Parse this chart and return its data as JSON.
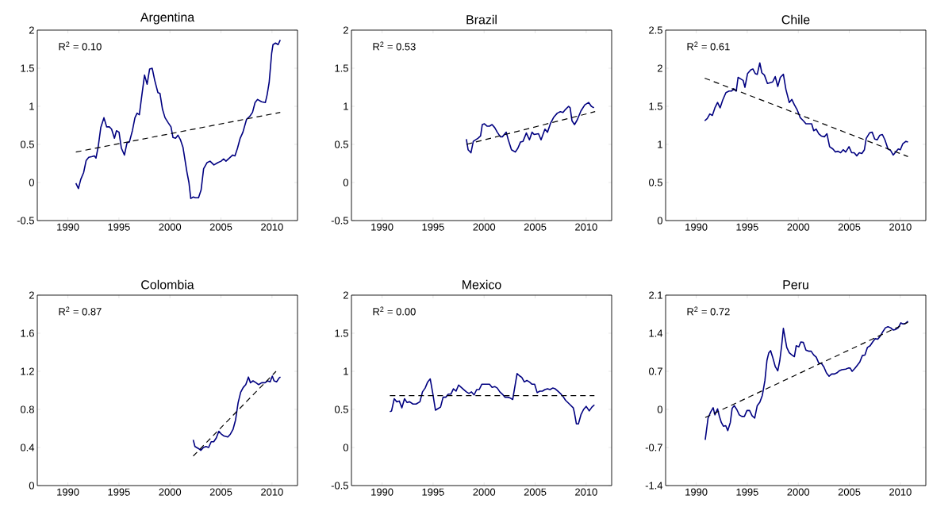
{
  "chart_data": [
    {
      "type": "line",
      "title": "Argentina",
      "annotations": [
        "R$^{2}$ = 0.10"
      ],
      "xlim": [
        1987,
        2012.5
      ],
      "ylim": [
        -0.5,
        2
      ],
      "xticks": [
        1990,
        1995,
        2000,
        2005,
        2010
      ],
      "yticks": [
        -0.5,
        0,
        0.5,
        1,
        1.5,
        2
      ],
      "series": [
        {
          "color": "#000080",
          "line_style": "solid",
          "x": [
            1990.78,
            1991.03,
            1991.26,
            1991.54,
            1991.79,
            1992.04,
            1992.39,
            1992.59,
            1992.75,
            1992.97,
            1993.22,
            1993.53,
            1993.8,
            1994.06,
            1994.28,
            1994.56,
            1994.76,
            1995.01,
            1995.24,
            1995.54,
            1995.79,
            1996.02,
            1996.32,
            1996.57,
            1996.78,
            1997.0,
            1997.25,
            1997.51,
            1997.76,
            1998.01,
            1998.26,
            1998.51,
            1998.82,
            1999.02,
            1999.27,
            1999.52,
            1999.85,
            2000.1,
            2000.3,
            2000.55,
            2000.78,
            2001.03,
            2001.28,
            2001.66,
            2001.86,
            2002.04,
            2002.29,
            2002.49,
            2002.8,
            2003.05,
            2003.3,
            2003.63,
            2003.93,
            2004.31,
            2004.69,
            2005.01,
            2005.26,
            2005.49,
            2005.82,
            2006.15,
            2006.37,
            2006.62,
            2006.88,
            2007.15,
            2007.51,
            2007.83,
            2008.09,
            2008.34,
            2008.59,
            2008.97,
            2009.35,
            2009.52,
            2009.72,
            2009.97,
            2010.1,
            2010.35,
            2010.6,
            2010.81
          ],
          "values": [
            -0.01,
            -0.08,
            0.04,
            0.13,
            0.29,
            0.33,
            0.34,
            0.35,
            0.32,
            0.47,
            0.72,
            0.85,
            0.73,
            0.73,
            0.7,
            0.58,
            0.68,
            0.66,
            0.45,
            0.36,
            0.52,
            0.53,
            0.68,
            0.85,
            0.91,
            0.89,
            1.15,
            1.41,
            1.29,
            1.49,
            1.5,
            1.34,
            1.18,
            1.17,
            0.96,
            0.85,
            0.78,
            0.73,
            0.59,
            0.58,
            0.62,
            0.56,
            0.46,
            0.14,
            0.0,
            -0.21,
            -0.19,
            -0.2,
            -0.2,
            -0.1,
            0.18,
            0.26,
            0.28,
            0.23,
            0.26,
            0.28,
            0.31,
            0.28,
            0.32,
            0.36,
            0.35,
            0.45,
            0.58,
            0.66,
            0.83,
            0.87,
            0.92,
            1.05,
            1.09,
            1.06,
            1.05,
            1.15,
            1.31,
            1.7,
            1.81,
            1.83,
            1.81,
            1.87
          ]
        },
        {
          "type": "line",
          "color": "#000000",
          "line_style": "dashed",
          "x": [
            1990.78,
            2010.81
          ],
          "values": [
            0.4,
            0.92
          ]
        }
      ]
    },
    {
      "type": "line",
      "title": "Brazil",
      "annotations": [
        "R$^{2}$ = 0.53"
      ],
      "xlim": [
        1987,
        2012.5
      ],
      "ylim": [
        -0.5,
        2
      ],
      "xticks": [
        1990,
        1995,
        2000,
        2005,
        2010
      ],
      "yticks": [
        -0.5,
        0,
        0.5,
        1,
        1.5,
        2
      ],
      "series": [
        {
          "color": "#000080",
          "line_style": "solid",
          "x": [
            1998.26,
            1998.43,
            1998.71,
            1998.94,
            1999.39,
            1999.65,
            1999.82,
            2000.03,
            2000.28,
            2000.53,
            2000.78,
            2001.04,
            2001.29,
            2001.59,
            2001.79,
            2002.17,
            2002.37,
            2002.68,
            2003.06,
            2003.31,
            2003.56,
            2003.81,
            2004.14,
            2004.44,
            2004.7,
            2004.9,
            2005.33,
            2005.58,
            2005.96,
            2006.21,
            2006.52,
            2006.84,
            2007.17,
            2007.47,
            2007.73,
            2007.98,
            2008.28,
            2008.43,
            2008.61,
            2008.86,
            2009.12,
            2009.49,
            2009.87,
            2010.25,
            2010.51,
            2010.76
          ],
          "values": [
            0.57,
            0.43,
            0.39,
            0.54,
            0.58,
            0.61,
            0.76,
            0.77,
            0.74,
            0.74,
            0.76,
            0.72,
            0.66,
            0.6,
            0.6,
            0.66,
            0.56,
            0.43,
            0.4,
            0.45,
            0.53,
            0.54,
            0.65,
            0.56,
            0.66,
            0.63,
            0.64,
            0.56,
            0.7,
            0.66,
            0.78,
            0.86,
            0.91,
            0.93,
            0.92,
            0.96,
            1.0,
            0.98,
            0.81,
            0.76,
            0.82,
            0.94,
            1.02,
            1.05,
            1.0,
            0.98
          ]
        },
        {
          "type": "line",
          "color": "#000000",
          "line_style": "dashed",
          "x": [
            1998.26,
            2010.88
          ],
          "values": [
            0.5,
            0.93
          ]
        }
      ]
    },
    {
      "type": "line",
      "title": "Chile",
      "annotations": [
        "R$^{2}$ = 0.61"
      ],
      "xlim": [
        1987,
        2012.5
      ],
      "ylim": [
        0,
        2.5
      ],
      "xticks": [
        1990,
        1995,
        2000,
        2005,
        2010
      ],
      "yticks": [
        0,
        0.5,
        1,
        1.5,
        2,
        2.5
      ],
      "series": [
        {
          "color": "#000080",
          "line_style": "solid",
          "x": [
            1990.83,
            1991.08,
            1991.33,
            1991.58,
            1991.83,
            1992.09,
            1992.34,
            1992.59,
            1992.91,
            1993.22,
            1993.47,
            1993.67,
            1993.92,
            1994.1,
            1994.35,
            1994.6,
            1994.77,
            1995.03,
            1995.35,
            1995.55,
            1995.78,
            1995.98,
            1996.23,
            1996.43,
            1996.68,
            1996.98,
            1997.24,
            1997.49,
            1997.74,
            1997.99,
            1998.24,
            1998.54,
            1998.79,
            1999.12,
            1999.37,
            1999.62,
            1999.87,
            2000.2,
            2000.5,
            2000.75,
            2001.08,
            2001.31,
            2001.51,
            2001.76,
            2002.01,
            2002.26,
            2002.56,
            2002.81,
            2003.07,
            2003.39,
            2003.64,
            2003.89,
            2004.15,
            2004.4,
            2004.65,
            2004.97,
            2005.23,
            2005.48,
            2005.73,
            2005.98,
            2006.23,
            2006.48,
            2006.66,
            2006.98,
            2007.24,
            2007.49,
            2007.74,
            2007.99,
            2008.24,
            2008.49,
            2008.79,
            2009.05,
            2009.3,
            2009.55,
            2009.8,
            2010.0,
            2010.25,
            2010.55,
            2010.75
          ],
          "values": [
            1.31,
            1.34,
            1.4,
            1.38,
            1.48,
            1.55,
            1.48,
            1.58,
            1.68,
            1.7,
            1.7,
            1.73,
            1.7,
            1.88,
            1.86,
            1.84,
            1.75,
            1.93,
            1.98,
            1.99,
            1.93,
            1.92,
            2.07,
            1.94,
            1.91,
            1.8,
            1.81,
            1.82,
            1.89,
            1.76,
            1.88,
            1.92,
            1.72,
            1.55,
            1.59,
            1.52,
            1.46,
            1.35,
            1.31,
            1.27,
            1.27,
            1.27,
            1.18,
            1.2,
            1.14,
            1.11,
            1.1,
            1.14,
            0.97,
            0.94,
            0.9,
            0.91,
            0.89,
            0.93,
            0.9,
            0.97,
            0.89,
            0.89,
            0.85,
            0.89,
            0.88,
            0.93,
            1.08,
            1.15,
            1.16,
            1.07,
            1.06,
            1.12,
            1.13,
            1.06,
            0.94,
            0.92,
            0.86,
            0.9,
            0.94,
            0.93,
            1.01,
            1.04,
            1.03
          ]
        },
        {
          "type": "line",
          "color": "#000000",
          "line_style": "dashed",
          "x": [
            1990.83,
            2010.75
          ],
          "values": [
            1.87,
            0.84
          ]
        }
      ]
    },
    {
      "type": "line",
      "title": "Colombia",
      "annotations": [
        "R$^{2}$ = 0.87"
      ],
      "xlim": [
        1987,
        2012.5
      ],
      "ylim": [
        0,
        2
      ],
      "xticks": [
        1990,
        1995,
        2000,
        2005,
        2010
      ],
      "yticks": [
        0,
        0.4,
        0.8,
        1.2,
        1.6,
        2
      ],
      "series": [
        {
          "color": "#000080",
          "line_style": "solid",
          "x": [
            2002.28,
            2002.45,
            2002.78,
            2003.03,
            2003.28,
            2003.53,
            2003.79,
            2004.04,
            2004.29,
            2004.54,
            2004.79,
            2005.04,
            2005.3,
            2005.67,
            2005.92,
            2006.18,
            2006.43,
            2006.68,
            2006.93,
            2007.18,
            2007.43,
            2007.69,
            2007.89,
            2008.14,
            2008.44,
            2008.69,
            2008.99,
            2009.32,
            2009.57,
            2009.82,
            2010.03,
            2010.2,
            2010.45,
            2010.7,
            2010.83
          ],
          "values": [
            0.48,
            0.41,
            0.39,
            0.37,
            0.4,
            0.41,
            0.4,
            0.46,
            0.46,
            0.5,
            0.57,
            0.54,
            0.52,
            0.51,
            0.54,
            0.59,
            0.69,
            0.87,
            0.98,
            1.03,
            1.06,
            1.14,
            1.08,
            1.1,
            1.08,
            1.06,
            1.08,
            1.08,
            1.1,
            1.09,
            1.15,
            1.1,
            1.09,
            1.13,
            1.14
          ]
        },
        {
          "type": "line",
          "color": "#000000",
          "line_style": "dashed",
          "x": [
            2002.28,
            2010.4
          ],
          "values": [
            0.31,
            1.2
          ]
        }
      ]
    },
    {
      "type": "line",
      "title": "Mexico",
      "annotations": [
        "R$^{2}$ = 0.00"
      ],
      "xlim": [
        1987,
        2012.5
      ],
      "ylim": [
        -0.5,
        2
      ],
      "xticks": [
        1990,
        1995,
        2000,
        2005,
        2010
      ],
      "yticks": [
        -0.5,
        0,
        0.5,
        1,
        1.5,
        2
      ],
      "series": [
        {
          "color": "#000080",
          "line_style": "solid",
          "x": [
            1990.76,
            1990.93,
            1991.19,
            1991.44,
            1991.69,
            1991.94,
            1992.2,
            1992.45,
            1992.7,
            1993.03,
            1993.33,
            1993.71,
            1993.96,
            1994.22,
            1994.47,
            1994.72,
            1994.97,
            1995.23,
            1995.48,
            1995.73,
            1995.98,
            1996.24,
            1996.49,
            1996.74,
            1996.99,
            1997.25,
            1997.5,
            1997.75,
            1998.01,
            1998.26,
            1998.51,
            1998.76,
            1999.02,
            1999.27,
            1999.52,
            1999.77,
            2000.03,
            2000.28,
            2000.53,
            2000.78,
            2001.04,
            2001.29,
            2001.54,
            2001.79,
            2002.05,
            2002.3,
            2002.55,
            2002.8,
            2003.23,
            2003.48,
            2003.69,
            2003.94,
            2004.19,
            2004.44,
            2004.7,
            2004.95,
            2005.2,
            2005.45,
            2005.71,
            2005.96,
            2006.21,
            2006.46,
            2006.72,
            2006.97,
            2007.22,
            2007.47,
            2007.73,
            2007.98,
            2008.36,
            2008.74,
            2008.86,
            2009.04,
            2009.24,
            2009.49,
            2009.75,
            2010.0,
            2010.3,
            2010.56,
            2010.81
          ],
          "values": [
            0.47,
            0.48,
            0.64,
            0.6,
            0.61,
            0.52,
            0.64,
            0.59,
            0.6,
            0.57,
            0.57,
            0.6,
            0.73,
            0.78,
            0.86,
            0.9,
            0.71,
            0.49,
            0.51,
            0.53,
            0.66,
            0.66,
            0.7,
            0.7,
            0.77,
            0.74,
            0.82,
            0.79,
            0.76,
            0.73,
            0.71,
            0.73,
            0.69,
            0.76,
            0.76,
            0.83,
            0.83,
            0.83,
            0.83,
            0.79,
            0.8,
            0.78,
            0.73,
            0.7,
            0.66,
            0.66,
            0.65,
            0.63,
            0.97,
            0.94,
            0.92,
            0.86,
            0.88,
            0.86,
            0.83,
            0.83,
            0.72,
            0.74,
            0.74,
            0.76,
            0.77,
            0.76,
            0.78,
            0.77,
            0.74,
            0.71,
            0.67,
            0.62,
            0.57,
            0.52,
            0.45,
            0.31,
            0.31,
            0.43,
            0.5,
            0.54,
            0.48,
            0.53,
            0.56
          ]
        },
        {
          "type": "line",
          "color": "#000000",
          "line_style": "dashed",
          "x": [
            1990.76,
            2010.81
          ],
          "values": [
            0.68,
            0.68
          ]
        }
      ]
    },
    {
      "type": "line",
      "title": "Peru",
      "annotations": [
        "R$^{2}$ = 0.72"
      ],
      "xlim": [
        1987,
        2012.5
      ],
      "ylim": [
        -1.4,
        2.1
      ],
      "xticks": [
        1990,
        1995,
        2000,
        2005,
        2010
      ],
      "yticks": [
        -1.4,
        -0.7,
        0,
        0.7,
        1.4,
        2.1
      ],
      "series": [
        {
          "color": "#000080",
          "line_style": "solid",
          "x": [
            1990.88,
            1991.16,
            1991.41,
            1991.66,
            1991.83,
            1992.09,
            1992.26,
            1992.46,
            1992.66,
            1992.89,
            1993.09,
            1993.34,
            1993.52,
            1993.72,
            1993.97,
            1994.22,
            1994.47,
            1994.72,
            1994.97,
            1995.23,
            1995.48,
            1995.73,
            1995.98,
            1996.23,
            1996.48,
            1996.73,
            1996.93,
            1997.11,
            1997.29,
            1997.49,
            1997.74,
            1997.99,
            1998.19,
            1998.37,
            1998.54,
            1998.69,
            1998.87,
            1999.12,
            1999.37,
            1999.62,
            1999.8,
            2000.05,
            2000.25,
            2000.5,
            2000.75,
            2001.01,
            2001.26,
            2001.51,
            2001.76,
            2002.01,
            2002.26,
            2002.51,
            2002.76,
            2003.02,
            2003.27,
            2003.52,
            2003.77,
            2004.02,
            2004.27,
            2004.65,
            2004.9,
            2005.08,
            2005.28,
            2005.53,
            2005.78,
            2006.03,
            2006.28,
            2006.53,
            2006.78,
            2007.04,
            2007.29,
            2007.54,
            2007.79,
            2008.04,
            2008.29,
            2008.54,
            2008.79,
            2009.05,
            2009.3,
            2009.55,
            2009.8,
            2010.05,
            2010.25,
            2010.5,
            2010.75
          ],
          "values": [
            -0.56,
            -0.16,
            -0.05,
            0.03,
            -0.1,
            0.01,
            -0.12,
            -0.24,
            -0.31,
            -0.3,
            -0.39,
            -0.24,
            0.02,
            0.07,
            0.0,
            -0.1,
            -0.13,
            -0.13,
            -0.02,
            -0.02,
            -0.12,
            -0.16,
            0.07,
            0.13,
            0.26,
            0.53,
            0.9,
            1.04,
            1.08,
            0.96,
            0.79,
            0.71,
            0.9,
            1.17,
            1.49,
            1.33,
            1.14,
            1.04,
            1.0,
            0.97,
            1.17,
            1.15,
            1.24,
            1.23,
            1.09,
            1.07,
            1.07,
            1.0,
            0.96,
            0.85,
            0.85,
            0.78,
            0.67,
            0.61,
            0.65,
            0.65,
            0.67,
            0.71,
            0.73,
            0.74,
            0.76,
            0.76,
            0.7,
            0.75,
            0.81,
            0.87,
            0.99,
            1.0,
            1.14,
            1.17,
            1.24,
            1.3,
            1.29,
            1.35,
            1.43,
            1.5,
            1.52,
            1.5,
            1.46,
            1.47,
            1.5,
            1.59,
            1.57,
            1.58,
            1.62
          ]
        },
        {
          "type": "line",
          "color": "#000000",
          "line_style": "dashed",
          "x": [
            1990.88,
            2010.75
          ],
          "values": [
            -0.15,
            1.6
          ]
        }
      ]
    }
  ]
}
